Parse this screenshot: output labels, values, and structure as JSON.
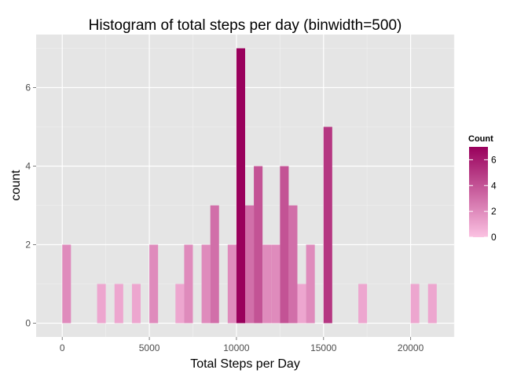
{
  "chart_data": {
    "type": "bar",
    "title": "Histogram of total steps per day (binwidth=500)",
    "xlabel": "Total Steps per Day",
    "ylabel": "count",
    "binwidth": 500,
    "xlim": [
      -1500,
      22500
    ],
    "ylim": [
      -0.35,
      7.35
    ],
    "x_ticks": [
      0,
      5000,
      10000,
      15000,
      20000
    ],
    "y_ticks": [
      0,
      2,
      4,
      6
    ],
    "grid": true,
    "bins": [
      {
        "center": 250,
        "count": 2
      },
      {
        "center": 2250,
        "count": 1
      },
      {
        "center": 3250,
        "count": 1
      },
      {
        "center": 4250,
        "count": 1
      },
      {
        "center": 5250,
        "count": 2
      },
      {
        "center": 6750,
        "count": 1
      },
      {
        "center": 7250,
        "count": 2
      },
      {
        "center": 8250,
        "count": 2
      },
      {
        "center": 8750,
        "count": 3
      },
      {
        "center": 9750,
        "count": 2
      },
      {
        "center": 10250,
        "count": 7
      },
      {
        "center": 10750,
        "count": 3
      },
      {
        "center": 11250,
        "count": 4
      },
      {
        "center": 11750,
        "count": 2
      },
      {
        "center": 12250,
        "count": 2
      },
      {
        "center": 12750,
        "count": 4
      },
      {
        "center": 13250,
        "count": 3
      },
      {
        "center": 13750,
        "count": 1
      },
      {
        "center": 14250,
        "count": 2
      },
      {
        "center": 15250,
        "count": 5
      },
      {
        "center": 17250,
        "count": 1
      },
      {
        "center": 20250,
        "count": 1
      },
      {
        "center": 21250,
        "count": 1
      }
    ],
    "legend": {
      "title": "Count",
      "position": "right",
      "ticks": [
        0,
        2,
        4,
        6
      ],
      "range": [
        0,
        7
      ],
      "color_low": "#fbc2e2",
      "color_high": "#99005c"
    },
    "colors": {
      "panel_bg": "#e5e5e5",
      "grid_major": "#ffffff",
      "grid_minor": "#f2f2f2"
    }
  }
}
